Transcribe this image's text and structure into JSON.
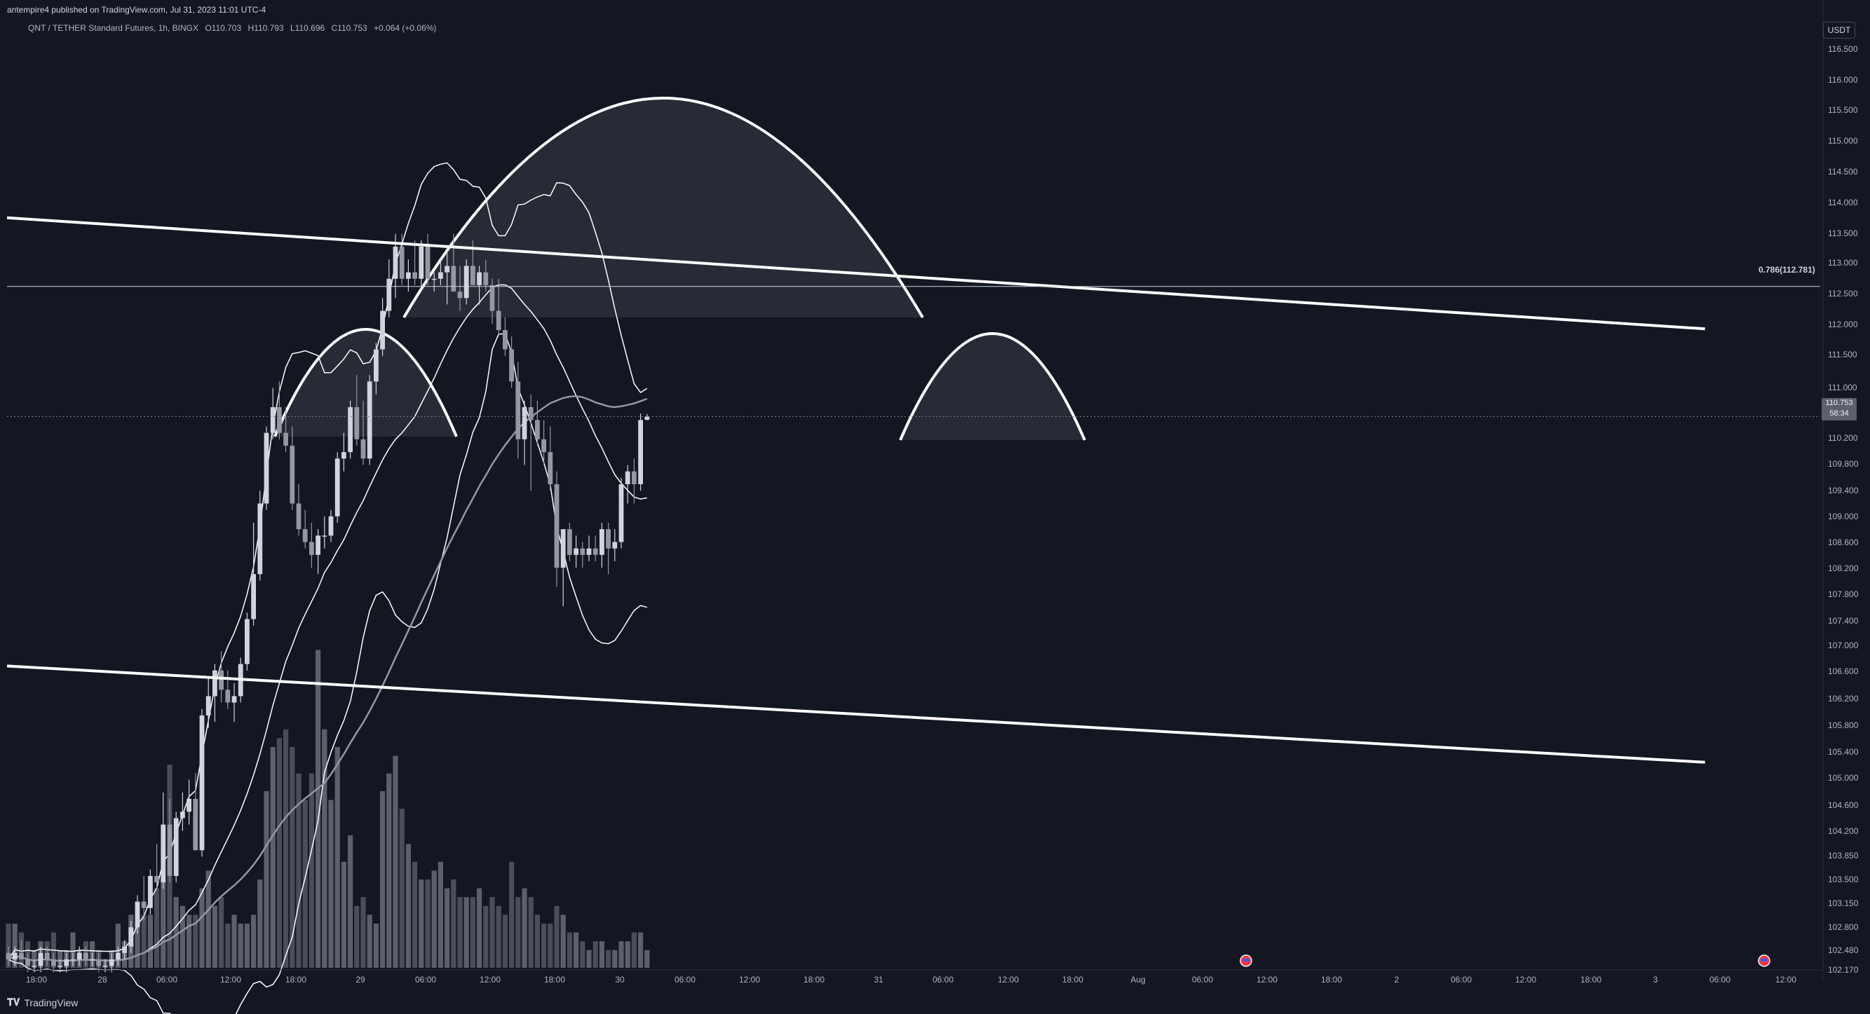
{
  "header": {
    "published": "antempire4 published on TradingView.com, Jul 31, 2023 11:01 UTC-4"
  },
  "legend": {
    "symbol": "QNT / TETHER Standard Futures, 1h, BINGX",
    "open": "O110.703",
    "high": "H110.793",
    "low": "L110.696",
    "close": "C110.753",
    "change": "+0.064 (+0.06%)"
  },
  "unit": "USDT",
  "fib": {
    "label": "0.786(112.781)"
  },
  "last_price": {
    "value": "110.753",
    "countdown": "58:34"
  },
  "footer": {
    "brand": "TradingView"
  },
  "colors": {
    "background": "#131722",
    "candle": "#b2b5be",
    "volume": "#5d606b",
    "trendline": "#ffffff",
    "shape_fill": "rgba(255,255,255,0.09)"
  },
  "chart_data": {
    "type": "candlestick",
    "symbol": "QNT / TETHER Standard Futures",
    "interval": "1h",
    "y_ticks": [
      "116.500",
      "116.000",
      "115.500",
      "115.000",
      "114.500",
      "114.000",
      "113.500",
      "113.000",
      "112.500",
      "112.000",
      "111.500",
      "111.000",
      "110.200",
      "109.800",
      "109.400",
      "109.000",
      "108.600",
      "108.200",
      "107.800",
      "107.400",
      "107.000",
      "106.600",
      "106.200",
      "105.800",
      "105.400",
      "105.000",
      "104.600",
      "104.200",
      "103.850",
      "103.500",
      "103.150",
      "102.800",
      "102.480",
      "102.170"
    ],
    "x_ticks": [
      "18:00",
      "28",
      "06:00",
      "12:00",
      "18:00",
      "29",
      "06:00",
      "12:00",
      "18:00",
      "30",
      "06:00",
      "12:00",
      "18:00",
      "31",
      "06:00",
      "12:00",
      "18:00",
      "Aug",
      "06:00",
      "12:00",
      "18:00",
      "2",
      "06:00",
      "12:00",
      "18:00",
      "3",
      "06:00",
      "12:00"
    ],
    "ylim": [
      102.17,
      116.75
    ],
    "candles": [
      [
        102.4,
        102.5,
        102.2,
        102.3
      ],
      [
        102.3,
        102.5,
        102.2,
        102.4
      ],
      [
        102.4,
        102.6,
        102.3,
        102.3
      ],
      [
        102.3,
        102.4,
        102.1,
        102.2
      ],
      [
        102.2,
        102.3,
        102.1,
        102.2
      ],
      [
        102.2,
        102.5,
        102.1,
        102.4
      ],
      [
        102.4,
        102.5,
        102.2,
        102.3
      ],
      [
        102.3,
        102.4,
        102.1,
        102.2
      ],
      [
        102.2,
        102.3,
        102.1,
        102.2
      ],
      [
        102.2,
        102.4,
        102.1,
        102.3
      ],
      [
        102.3,
        102.4,
        102.2,
        102.3
      ],
      [
        102.3,
        102.5,
        102.2,
        102.4
      ],
      [
        102.4,
        102.5,
        102.2,
        102.3
      ],
      [
        102.3,
        102.4,
        102.2,
        102.3
      ],
      [
        102.3,
        102.4,
        102.1,
        102.2
      ],
      [
        102.2,
        102.3,
        102.1,
        102.2
      ],
      [
        102.2,
        102.4,
        102.1,
        102.3
      ],
      [
        102.3,
        102.5,
        102.2,
        102.4
      ],
      [
        102.4,
        102.6,
        102.3,
        102.5
      ],
      [
        102.5,
        102.9,
        102.4,
        102.8
      ],
      [
        102.8,
        103.3,
        102.7,
        103.2
      ],
      [
        103.2,
        103.6,
        102.9,
        103.1
      ],
      [
        103.1,
        103.7,
        103.0,
        103.6
      ],
      [
        103.6,
        104.1,
        103.4,
        103.5
      ],
      [
        103.5,
        104.9,
        103.4,
        104.4
      ],
      [
        104.4,
        104.8,
        103.5,
        103.6
      ],
      [
        103.6,
        104.6,
        103.5,
        104.5
      ],
      [
        104.5,
        104.9,
        104.3,
        104.6
      ],
      [
        104.6,
        105.1,
        104.4,
        104.8
      ],
      [
        104.8,
        105.2,
        104.0,
        104.0
      ],
      [
        104.0,
        106.2,
        103.9,
        106.1
      ],
      [
        106.1,
        106.7,
        105.9,
        106.4
      ],
      [
        106.4,
        106.9,
        106.0,
        106.8
      ],
      [
        106.8,
        107.1,
        106.3,
        106.5
      ],
      [
        106.5,
        106.8,
        106.2,
        106.3
      ],
      [
        106.3,
        106.6,
        106.0,
        106.4
      ],
      [
        106.4,
        107.0,
        106.3,
        106.9
      ],
      [
        106.9,
        107.7,
        106.8,
        107.6
      ],
      [
        107.6,
        109.1,
        107.5,
        108.3
      ],
      [
        108.3,
        109.6,
        108.2,
        109.4
      ],
      [
        109.4,
        110.6,
        109.3,
        110.5
      ],
      [
        110.5,
        111.2,
        110.4,
        110.9
      ],
      [
        110.9,
        111.3,
        110.4,
        110.5
      ],
      [
        110.5,
        110.9,
        110.2,
        110.3
      ],
      [
        110.3,
        110.6,
        109.3,
        109.4
      ],
      [
        109.4,
        109.7,
        108.9,
        109.0
      ],
      [
        109.0,
        109.3,
        108.7,
        108.8
      ],
      [
        108.8,
        109.1,
        108.4,
        108.6
      ],
      [
        108.6,
        109.0,
        108.3,
        108.9
      ],
      [
        108.9,
        109.2,
        108.7,
        108.9
      ],
      [
        108.9,
        109.3,
        108.8,
        109.2
      ],
      [
        109.2,
        110.2,
        109.1,
        110.1
      ],
      [
        110.1,
        110.5,
        109.9,
        110.2
      ],
      [
        110.2,
        111.0,
        110.1,
        110.9
      ],
      [
        110.9,
        111.4,
        110.3,
        110.4
      ],
      [
        110.4,
        111.0,
        110.0,
        110.1
      ],
      [
        110.1,
        111.4,
        110.0,
        111.3
      ],
      [
        111.3,
        111.9,
        111.1,
        111.8
      ],
      [
        111.8,
        112.6,
        111.7,
        112.4
      ],
      [
        112.4,
        113.2,
        112.3,
        112.9
      ],
      [
        112.9,
        113.6,
        112.6,
        113.4
      ],
      [
        113.4,
        113.6,
        112.8,
        112.9
      ],
      [
        112.9,
        113.2,
        112.7,
        113.0
      ],
      [
        113.0,
        113.5,
        112.8,
        112.9
      ],
      [
        112.9,
        113.5,
        112.7,
        113.4
      ],
      [
        113.4,
        113.6,
        112.8,
        112.9
      ],
      [
        112.9,
        113.0,
        112.7,
        112.9
      ],
      [
        112.9,
        113.2,
        112.8,
        113.0
      ],
      [
        113.0,
        113.3,
        112.5,
        113.1
      ],
      [
        113.1,
        113.6,
        112.7,
        112.7
      ],
      [
        112.7,
        113.1,
        112.4,
        112.6
      ],
      [
        112.6,
        113.2,
        112.5,
        113.1
      ],
      [
        113.1,
        113.5,
        112.8,
        112.8
      ],
      [
        112.8,
        113.1,
        112.5,
        113.0
      ],
      [
        113.0,
        113.2,
        112.7,
        112.8
      ],
      [
        112.8,
        112.9,
        112.2,
        112.4
      ],
      [
        112.4,
        112.9,
        112.0,
        112.1
      ],
      [
        112.1,
        112.3,
        111.7,
        111.8
      ],
      [
        111.8,
        112.0,
        111.2,
        111.3
      ],
      [
        111.3,
        111.6,
        110.1,
        110.4
      ],
      [
        110.4,
        111.0,
        110.0,
        110.9
      ],
      [
        110.9,
        111.1,
        109.6,
        110.7
      ],
      [
        110.7,
        111.0,
        110.3,
        110.4
      ],
      [
        110.4,
        110.7,
        110.0,
        110.2
      ],
      [
        110.2,
        110.6,
        109.6,
        109.7
      ],
      [
        109.7,
        109.9,
        108.1,
        108.4
      ],
      [
        108.4,
        109.0,
        107.8,
        109.0
      ],
      [
        109.0,
        109.1,
        108.5,
        108.6
      ],
      [
        108.6,
        108.9,
        108.4,
        108.7
      ],
      [
        108.7,
        108.8,
        108.4,
        108.6
      ],
      [
        108.6,
        108.9,
        108.5,
        108.7
      ],
      [
        108.7,
        108.9,
        108.5,
        108.6
      ],
      [
        108.6,
        109.1,
        108.4,
        109.0
      ],
      [
        109.0,
        109.1,
        108.3,
        108.7
      ],
      [
        108.7,
        109.0,
        108.5,
        108.8
      ],
      [
        108.8,
        109.8,
        108.7,
        109.7
      ],
      [
        109.7,
        110.0,
        109.4,
        109.9
      ],
      [
        109.9,
        110.1,
        109.4,
        109.7
      ],
      [
        109.7,
        110.8,
        109.6,
        110.7
      ],
      [
        110.703,
        110.793,
        110.696,
        110.753
      ]
    ],
    "volume": [
      5,
      5,
      4,
      3,
      2,
      3,
      3,
      4,
      2,
      2,
      4,
      2,
      3,
      3,
      2,
      1,
      2,
      5,
      3,
      6,
      5,
      6,
      6,
      9,
      10,
      23,
      8,
      7,
      6,
      6,
      9,
      11,
      7,
      8,
      5,
      6,
      5,
      5,
      6,
      10,
      20,
      25,
      26,
      27,
      25,
      22,
      19,
      22,
      36,
      27,
      19,
      25,
      12,
      15,
      7,
      8,
      6,
      5,
      20,
      22,
      24,
      18,
      14,
      12,
      10,
      10,
      11,
      12,
      9,
      10,
      8,
      8,
      8,
      9,
      7,
      8,
      7,
      6,
      12,
      8,
      9,
      8,
      6,
      5,
      5,
      7,
      6,
      4,
      4,
      3,
      2,
      3,
      3,
      2,
      2,
      3,
      3,
      4,
      4,
      2
    ],
    "trendlines": [
      {
        "from": [
          0,
          113.85
        ],
        "to": [
          263,
          112.12
        ]
      },
      {
        "from": [
          0,
          106.87
        ],
        "to": [
          263,
          105.37
        ]
      }
    ],
    "fib_level": {
      "label": "0.786(112.781)",
      "price": 112.781
    },
    "last_price": 110.753
  }
}
